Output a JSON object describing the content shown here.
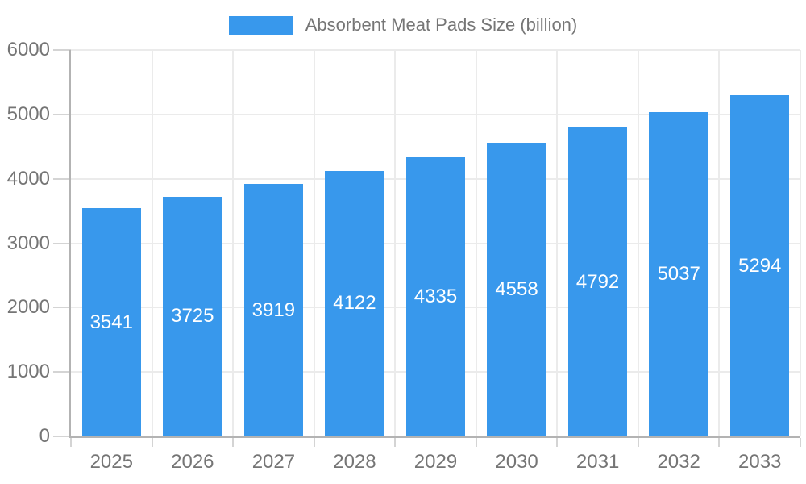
{
  "legend": {
    "label": "Absorbent Meat Pads Size (billion)"
  },
  "chart_data": {
    "type": "bar",
    "title": "Absorbent Meat Pads Size (billion)",
    "categories": [
      "2025",
      "2026",
      "2027",
      "2028",
      "2029",
      "2030",
      "2031",
      "2032",
      "2033"
    ],
    "series": [
      {
        "name": "Absorbent Meat Pads Size (billion)",
        "values": [
          3541,
          3725,
          3919,
          4122,
          4335,
          4558,
          4792,
          5037,
          5294
        ]
      }
    ],
    "xlabel": "",
    "ylabel": "",
    "ylim": [
      0,
      6000
    ],
    "y_ticks": [
      0,
      1000,
      2000,
      3000,
      4000,
      5000,
      6000
    ],
    "grid": true,
    "legend_position": "top-center",
    "value_labels": "inside-center"
  },
  "colors": {
    "bar": "#3898EC",
    "bar_label": "#FFFFFF",
    "axis_text": "#757575",
    "axis_line": "#B3B3B3",
    "grid_line": "#EBEBEB",
    "tick_line": "#D4D4D4",
    "background": "#FFFFFF"
  }
}
